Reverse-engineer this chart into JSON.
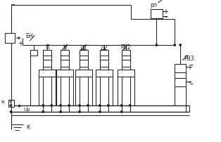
{
  "bg_color": "#ffffff",
  "lc": "#222222",
  "lw": 0.75,
  "labels": {
    "BN": "БН",
    "P": "П",
    "N": "Н",
    "D1": "Д1",
    "D2": "Д2",
    "RV2": "РВ2",
    "RV3": "РВ3.",
    "RP": "рп",
    "Ik": "Iк",
    "Up": "Uр",
    "K": "К"
  },
  "figsize": [
    3.14,
    2.03
  ],
  "dpi": 100
}
